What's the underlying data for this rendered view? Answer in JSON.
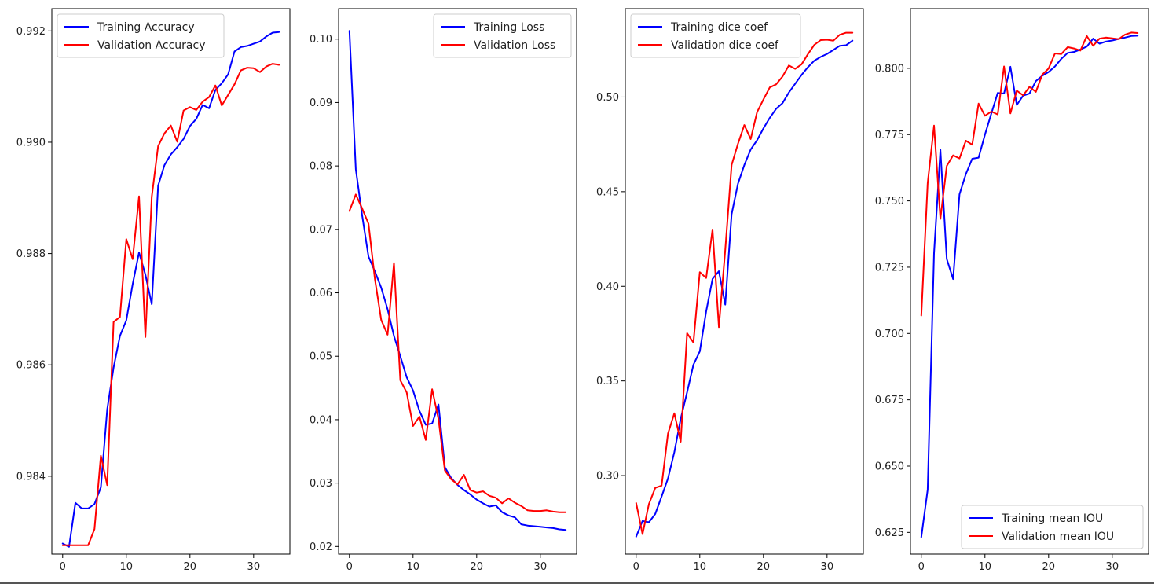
{
  "colors": {
    "training": "#0000ff",
    "validation": "#ff0000",
    "axes": "#000000",
    "legend_border": "#cccccc"
  },
  "chart_data": [
    {
      "type": "line",
      "xlim": [
        -1.7,
        35.7
      ],
      "ylim": [
        0.9826,
        0.9924
      ],
      "x_ticks": [
        0,
        10,
        20,
        30
      ],
      "x_tick_labels": [
        "0",
        "10",
        "20",
        "30"
      ],
      "y_ticks": [
        0.984,
        0.986,
        0.988,
        0.99,
        0.992
      ],
      "y_tick_labels": [
        "0.984",
        "0.986",
        "0.988",
        "0.990",
        "0.992"
      ],
      "legend": {
        "location": "upper-left",
        "entries": [
          "Training Accuracy",
          "Validation Accuracy"
        ]
      },
      "grid": false,
      "series": [
        {
          "name": "Training Accuracy",
          "color": "#0000ff",
          "values": [
            0.98279,
            0.98273,
            0.98352,
            0.98342,
            0.98342,
            0.9835,
            0.9838,
            0.9852,
            0.98595,
            0.98652,
            0.9868,
            0.98745,
            0.98802,
            0.98762,
            0.98709,
            0.98922,
            0.98959,
            0.98978,
            0.98991,
            0.99006,
            0.99029,
            0.99042,
            0.99067,
            0.99061,
            0.99094,
            0.99106,
            0.99122,
            0.99163,
            0.99171,
            0.99173,
            0.99177,
            0.99181,
            0.9919,
            0.99197,
            0.99198
          ]
        },
        {
          "name": "Validation Accuracy",
          "color": "#ff0000",
          "values": [
            0.98276,
            0.98276,
            0.98276,
            0.98276,
            0.98276,
            0.98305,
            0.98437,
            0.98384,
            0.98677,
            0.98686,
            0.98826,
            0.9879,
            0.98903,
            0.9865,
            0.98902,
            0.98993,
            0.99016,
            0.9903,
            0.99001,
            0.99057,
            0.99063,
            0.99058,
            0.99073,
            0.99081,
            0.99102,
            0.99066,
            0.99085,
            0.99104,
            0.99129,
            0.99134,
            0.99133,
            0.99126,
            0.99136,
            0.99141,
            0.99139
          ]
        }
      ]
    },
    {
      "type": "line",
      "xlim": [
        -1.7,
        35.7
      ],
      "ylim": [
        0.0188,
        0.1048
      ],
      "x_ticks": [
        0,
        10,
        20,
        30
      ],
      "x_tick_labels": [
        "0",
        "10",
        "20",
        "30"
      ],
      "y_ticks": [
        0.02,
        0.03,
        0.04,
        0.05,
        0.06,
        0.07,
        0.08,
        0.09,
        0.1
      ],
      "y_tick_labels": [
        "0.02",
        "0.03",
        "0.04",
        "0.05",
        "0.06",
        "0.07",
        "0.08",
        "0.09",
        "0.10"
      ],
      "legend": {
        "location": "upper-right",
        "entries": [
          "Training Loss",
          "Validation Loss"
        ]
      },
      "grid": false,
      "series": [
        {
          "name": "Training Loss",
          "color": "#0000ff",
          "values": [
            0.1013,
            0.0795,
            0.0722,
            0.0657,
            0.0634,
            0.0608,
            0.0574,
            0.0532,
            0.05,
            0.0467,
            0.0446,
            0.0414,
            0.0392,
            0.0394,
            0.0424,
            0.0325,
            0.0308,
            0.0297,
            0.0289,
            0.0282,
            0.0274,
            0.0268,
            0.0263,
            0.0265,
            0.0254,
            0.0249,
            0.0246,
            0.0235,
            0.0233,
            0.0232,
            0.0231,
            0.023,
            0.0229,
            0.0227,
            0.0226
          ]
        },
        {
          "name": "Validation Loss",
          "color": "#ff0000",
          "values": [
            0.0729,
            0.0755,
            0.0733,
            0.0709,
            0.0622,
            0.0557,
            0.0534,
            0.0647,
            0.0462,
            0.0443,
            0.039,
            0.0405,
            0.0368,
            0.0448,
            0.0401,
            0.032,
            0.0306,
            0.0298,
            0.0313,
            0.0289,
            0.0285,
            0.0287,
            0.028,
            0.0277,
            0.0268,
            0.0276,
            0.0269,
            0.0264,
            0.0257,
            0.0256,
            0.0256,
            0.0257,
            0.0255,
            0.0254,
            0.0254
          ]
        }
      ]
    },
    {
      "type": "line",
      "xlim": [
        -1.7,
        35.7
      ],
      "ylim": [
        0.2585,
        0.5467
      ],
      "x_ticks": [
        0,
        10,
        20,
        30
      ],
      "x_tick_labels": [
        "0",
        "10",
        "20",
        "30"
      ],
      "y_ticks": [
        0.3,
        0.35,
        0.4,
        0.45,
        0.5
      ],
      "y_tick_labels": [
        "0.30",
        "0.35",
        "0.40",
        "0.45",
        "0.50"
      ],
      "legend": {
        "location": "upper-left",
        "entries": [
          "Training dice coef",
          "Validation dice coef"
        ]
      },
      "grid": false,
      "series": [
        {
          "name": "Training dice coef",
          "color": "#0000ff",
          "values": [
            0.2677,
            0.276,
            0.2753,
            0.2797,
            0.289,
            0.2985,
            0.3124,
            0.33,
            0.344,
            0.3586,
            0.3656,
            0.3867,
            0.4039,
            0.408,
            0.3903,
            0.4381,
            0.4542,
            0.4641,
            0.4723,
            0.4772,
            0.4834,
            0.489,
            0.4938,
            0.4968,
            0.5024,
            0.5071,
            0.5117,
            0.5158,
            0.5192,
            0.5212,
            0.5228,
            0.5249,
            0.5271,
            0.5274,
            0.5298
          ]
        },
        {
          "name": "Validation dice coef",
          "color": "#ff0000",
          "values": [
            0.2855,
            0.2691,
            0.2849,
            0.2935,
            0.2947,
            0.3222,
            0.3329,
            0.3179,
            0.3752,
            0.3703,
            0.4075,
            0.4044,
            0.43,
            0.3784,
            0.4192,
            0.4641,
            0.4753,
            0.4852,
            0.4778,
            0.492,
            0.4987,
            0.5051,
            0.5067,
            0.5108,
            0.5167,
            0.5149,
            0.5173,
            0.5227,
            0.5276,
            0.5301,
            0.5303,
            0.5298,
            0.5329,
            0.534,
            0.534
          ]
        }
      ]
    },
    {
      "type": "line",
      "xlim": [
        -1.7,
        35.7
      ],
      "ylim": [
        0.6168,
        0.8225
      ],
      "x_ticks": [
        0,
        10,
        20,
        30
      ],
      "x_tick_labels": [
        "0",
        "10",
        "20",
        "30"
      ],
      "y_ticks": [
        0.625,
        0.65,
        0.675,
        0.7,
        0.725,
        0.75,
        0.775,
        0.8
      ],
      "y_tick_labels": [
        "0.625",
        "0.650",
        "0.675",
        "0.700",
        "0.725",
        "0.750",
        "0.775",
        "0.800"
      ],
      "legend": {
        "location": "lower-right",
        "entries": [
          "Training mean IOU",
          "Validation mean IOU"
        ]
      },
      "grid": false,
      "series": [
        {
          "name": "Training mean IOU",
          "color": "#0000ff",
          "values": [
            0.6232,
            0.6411,
            0.7303,
            0.7693,
            0.7281,
            0.7205,
            0.7525,
            0.7601,
            0.7659,
            0.7663,
            0.775,
            0.7829,
            0.7907,
            0.7905,
            0.8006,
            0.7862,
            0.7897,
            0.7905,
            0.7952,
            0.7972,
            0.7986,
            0.8007,
            0.8036,
            0.8058,
            0.8062,
            0.8071,
            0.8082,
            0.8112,
            0.8093,
            0.8101,
            0.8105,
            0.8111,
            0.8116,
            0.8122,
            0.8123
          ]
        },
        {
          "name": "Validation mean IOU",
          "color": "#ff0000",
          "values": [
            0.7068,
            0.7567,
            0.7784,
            0.7432,
            0.7632,
            0.7672,
            0.766,
            0.7727,
            0.7712,
            0.7867,
            0.7821,
            0.7837,
            0.7826,
            0.8007,
            0.783,
            0.7916,
            0.7898,
            0.793,
            0.7911,
            0.7976,
            0.7999,
            0.8056,
            0.8054,
            0.808,
            0.8075,
            0.8067,
            0.8122,
            0.8085,
            0.8112,
            0.8116,
            0.8113,
            0.811,
            0.8127,
            0.8135,
            0.8133
          ]
        }
      ]
    }
  ]
}
